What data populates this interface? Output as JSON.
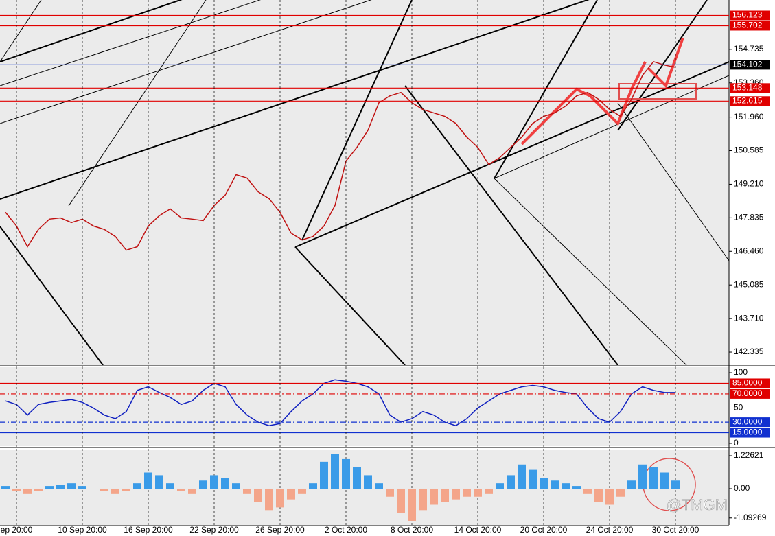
{
  "chart_data": [
    {
      "type": "line",
      "ylim": [
        141.802,
        156.755
      ],
      "yticks": [
        142.335,
        {
          "value": 143.71,
          "label": "143.710"
        },
        145.085,
        {
          "value": 146.46,
          "label": "146.460"
        },
        147.835,
        {
          "value": 149.21,
          "label": "149.210"
        },
        150.585,
        {
          "value": 151.96,
          "label": "151.960"
        },
        {
          "value": 153.36,
          "label": "153.360"
        },
        154.735
      ],
      "levels": [
        {
          "value": 156.123,
          "color": "#e00000"
        },
        {
          "value": 155.702,
          "color": "#e00000"
        },
        {
          "value": 154.102,
          "color": "#3050d0",
          "tag": "#000000"
        },
        {
          "value": 153.148,
          "color": "#e00000"
        },
        {
          "value": 152.615,
          "color": "#e00000"
        }
      ],
      "series": [
        {
          "color": "#c01010",
          "values": [
            148.06,
            147.5,
            146.65,
            147.36,
            147.78,
            147.83,
            147.64,
            147.78,
            147.5,
            147.36,
            147.07,
            146.51,
            146.65,
            147.5,
            147.92,
            148.2,
            147.83,
            147.78,
            147.72,
            148.34,
            148.76,
            149.6,
            149.46,
            148.9,
            148.62,
            148.06,
            147.21,
            146.93,
            147.07,
            147.5,
            148.34,
            150.16,
            150.72,
            151.42,
            152.55,
            152.83,
            152.97,
            152.55,
            152.27,
            152.13,
            151.99,
            151.7,
            151.14,
            150.72,
            150.02,
            150.3,
            150.72,
            151.14,
            151.7,
            151.99,
            152.13,
            152.41,
            152.83,
            152.97,
            152.69,
            152.27,
            151.99,
            152.69,
            153.67,
            154.23,
            154.09,
            154.0
          ]
        }
      ]
    },
    {
      "type": "line",
      "ylim": [
        -3.9,
        107.8
      ],
      "yticks": [
        0,
        50,
        100
      ],
      "levels": [
        {
          "value": 85,
          "label": "85.0000",
          "color": "#e00000"
        },
        {
          "value": 70,
          "label": "70.0000",
          "color": "#e00000",
          "dash": true
        },
        {
          "value": 30,
          "label": "30.0000",
          "color": "#1030d0",
          "dash": true
        },
        {
          "value": 15,
          "label": "15.0000",
          "color": "#1030d0"
        }
      ],
      "series": [
        {
          "color": "#1020c0",
          "values": [
            60,
            55,
            40,
            55,
            58,
            60,
            62,
            58,
            50,
            40,
            35,
            45,
            75,
            80,
            72,
            65,
            55,
            60,
            75,
            85,
            80,
            55,
            40,
            30,
            25,
            28,
            45,
            60,
            70,
            85,
            90,
            88,
            85,
            80,
            70,
            40,
            30,
            35,
            45,
            40,
            30,
            25,
            35,
            50,
            60,
            70,
            75,
            80,
            82,
            80,
            75,
            72,
            70,
            50,
            35,
            30,
            45,
            70,
            80,
            75,
            72,
            72
          ]
        }
      ]
    },
    {
      "type": "bar",
      "ylim": [
        -1.354,
        1.456
      ],
      "yticks": [
        {
          "value": -1.09269,
          "label": "-1.09269"
        },
        {
          "value": 0,
          "label": "0.00"
        },
        1.22621
      ],
      "colors": {
        "positive": "#3a9be8",
        "negative": "#f4a58a"
      },
      "values": [
        0.1,
        -0.1,
        -0.2,
        -0.1,
        0.1,
        0.15,
        0.2,
        0.1,
        0,
        -0.1,
        -0.2,
        -0.1,
        0.2,
        0.6,
        0.5,
        0.2,
        -0.1,
        -0.2,
        0.3,
        0.5,
        0.4,
        0.2,
        -0.2,
        -0.5,
        -0.8,
        -0.7,
        -0.4,
        -0.2,
        0.2,
        1.0,
        1.3,
        1.1,
        0.8,
        0.5,
        0.2,
        -0.3,
        -0.9,
        -1.2,
        -0.8,
        -0.6,
        -0.5,
        -0.4,
        -0.3,
        -0.3,
        -0.2,
        0.2,
        0.5,
        0.9,
        0.7,
        0.4,
        0.3,
        0.2,
        0.1,
        -0.2,
        -0.5,
        -0.6,
        -0.3,
        0.3,
        0.9,
        0.8,
        0.6,
        0.3
      ],
      "categories": [
        null,
        "ep 20:00",
        null,
        null,
        null,
        null,
        null,
        "10 Sep 20:00",
        null,
        null,
        null,
        null,
        null,
        "16 Sep 20:00",
        null,
        null,
        null,
        null,
        null,
        "22 Sep 20:00",
        null,
        null,
        null,
        null,
        null,
        "26 Sep 20:00",
        null,
        null,
        null,
        null,
        null,
        "2 Oct 20:00",
        null,
        null,
        null,
        null,
        null,
        "8 Oct 20:00",
        null,
        null,
        null,
        null,
        null,
        "14 Oct 20:00",
        null,
        null,
        null,
        null,
        null,
        "20 Oct 20:00",
        null,
        null,
        null,
        null,
        null,
        "24 Oct 20:00",
        null,
        null,
        null,
        null,
        null,
        "30 Oct 20:00"
      ]
    }
  ],
  "watermark": "@TMGM"
}
